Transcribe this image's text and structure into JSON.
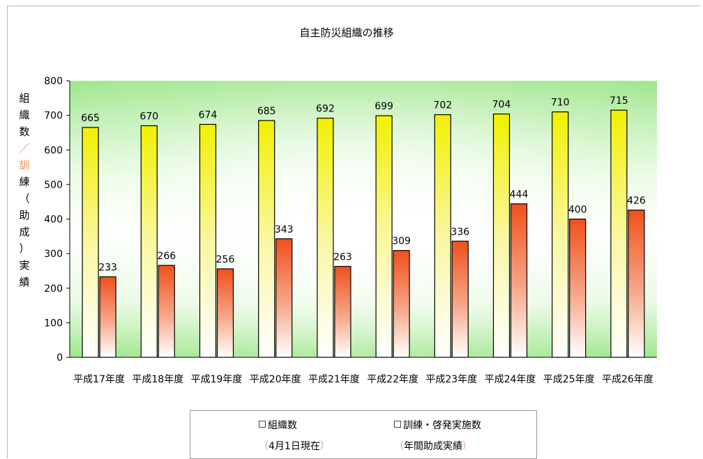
{
  "chart_data": {
    "type": "bar",
    "title": "自主防災組織の推移",
    "ylabel": "組織数／訓練（助成）実績",
    "ylim": [
      0,
      800
    ],
    "yticks": [
      0,
      100,
      200,
      300,
      400,
      500,
      600,
      700,
      800
    ],
    "categories": [
      "平成17年度",
      "平成18年度",
      "平成19年度",
      "平成20年度",
      "平成21年度",
      "平成22年度",
      "平成23年度",
      "平成24年度",
      "平成25年度",
      "平成26年度"
    ],
    "series": [
      {
        "name": "組織数",
        "values": [
          665,
          670,
          674,
          685,
          692,
          699,
          702,
          704,
          710,
          715
        ]
      },
      {
        "name": "訓練・啓発実施数",
        "values": [
          233,
          266,
          256,
          343,
          263,
          309,
          336,
          444,
          400,
          426
        ]
      }
    ],
    "legend_position": "bottom",
    "grid": false
  },
  "legend": {
    "item1_label": "組織数",
    "item1_sub_open": "（",
    "item1_sub_text": "4月1日現在",
    "item1_sub_close": "）",
    "item2_label": "訓練・啓発実施数",
    "item2_sub_open": "（",
    "item2_sub_text": "年間助成実績",
    "item2_sub_close": "）"
  },
  "colors": {
    "plot_bg_center": "#ffffff",
    "plot_bg_edge": "#8fe07a",
    "series1_top": "#f0f000",
    "series1_bottom": "#ffffff",
    "series2_top": "#f05a20",
    "series2_bottom": "#ffffff"
  }
}
